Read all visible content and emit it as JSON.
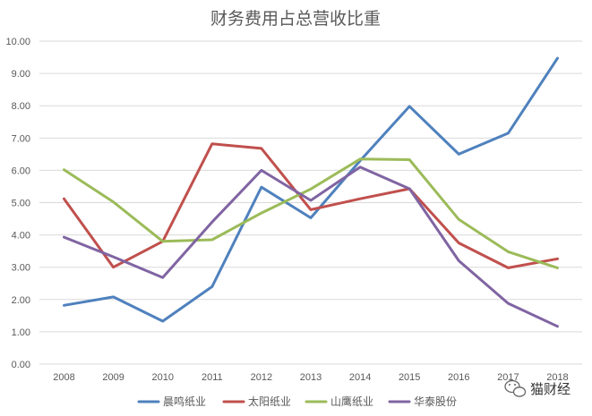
{
  "chart_data": {
    "type": "line",
    "title": "财务费用占总营收比重",
    "xlabel": "",
    "ylabel": "",
    "categories": [
      "2008",
      "2009",
      "2010",
      "2011",
      "2012",
      "2013",
      "2014",
      "2015",
      "2016",
      "2017",
      "2018"
    ],
    "ylim": [
      0,
      10
    ],
    "yticks": [
      "0.00",
      "1.00",
      "2.00",
      "3.00",
      "4.00",
      "5.00",
      "6.00",
      "7.00",
      "8.00",
      "9.00",
      "10.00"
    ],
    "grid": true,
    "legend_position": "bottom",
    "series": [
      {
        "name": "晨鸣纸业",
        "color": "#4f81bd",
        "values": [
          1.82,
          2.08,
          1.33,
          2.4,
          5.48,
          4.53,
          6.3,
          7.98,
          6.5,
          7.15,
          9.47
        ]
      },
      {
        "name": "太阳纸业",
        "color": "#c0504d",
        "values": [
          5.12,
          3.0,
          3.8,
          6.82,
          6.68,
          4.78,
          5.12,
          5.43,
          3.75,
          2.98,
          3.26
        ]
      },
      {
        "name": "山鹰纸业",
        "color": "#9bbb59",
        "values": [
          6.02,
          5.02,
          3.8,
          3.85,
          4.68,
          5.42,
          6.35,
          6.33,
          4.48,
          3.48,
          2.98
        ]
      },
      {
        "name": "华泰股份",
        "color": "#8064a2",
        "values": [
          3.93,
          3.32,
          2.68,
          4.4,
          6.0,
          5.07,
          6.1,
          5.43,
          3.2,
          1.88,
          1.17
        ]
      }
    ]
  },
  "watermark": {
    "text": "猫财经",
    "icon": "wechat-icon"
  }
}
